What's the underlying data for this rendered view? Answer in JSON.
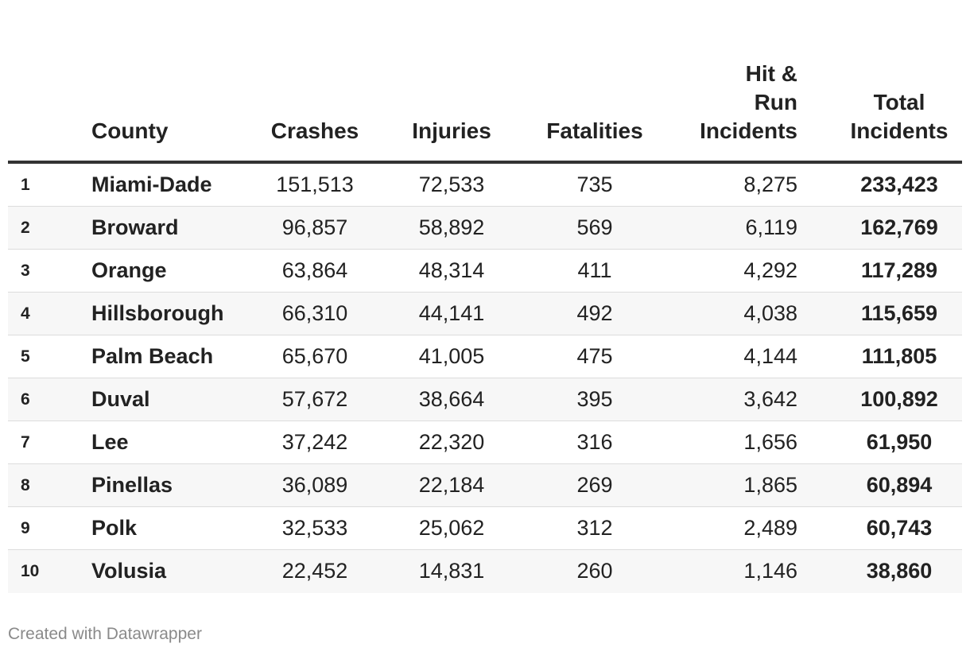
{
  "chart_data": {
    "type": "table",
    "columns": [
      "",
      "County",
      "Crashes",
      "Injuries",
      "Fatalities",
      "Hit & Run Incidents",
      "Total Incidents"
    ],
    "header_lines": {
      "hit_and_run": [
        "Hit &",
        "Run",
        "Incidents"
      ],
      "total": [
        "Total",
        "Incidents"
      ]
    },
    "rows": [
      {
        "rank": "1",
        "county": "Miami-Dade",
        "crashes": "151,513",
        "injuries": "72,533",
        "fatalities": "735",
        "hit_and_run": "8,275",
        "total": "233,423"
      },
      {
        "rank": "2",
        "county": "Broward",
        "crashes": "96,857",
        "injuries": "58,892",
        "fatalities": "569",
        "hit_and_run": "6,119",
        "total": "162,769"
      },
      {
        "rank": "3",
        "county": "Orange",
        "crashes": "63,864",
        "injuries": "48,314",
        "fatalities": "411",
        "hit_and_run": "4,292",
        "total": "117,289"
      },
      {
        "rank": "4",
        "county": "Hillsborough",
        "crashes": "66,310",
        "injuries": "44,141",
        "fatalities": "492",
        "hit_and_run": "4,038",
        "total": "115,659"
      },
      {
        "rank": "5",
        "county": "Palm Beach",
        "crashes": "65,670",
        "injuries": "41,005",
        "fatalities": "475",
        "hit_and_run": "4,144",
        "total": "111,805"
      },
      {
        "rank": "6",
        "county": "Duval",
        "crashes": "57,672",
        "injuries": "38,664",
        "fatalities": "395",
        "hit_and_run": "3,642",
        "total": "100,892"
      },
      {
        "rank": "7",
        "county": "Lee",
        "crashes": "37,242",
        "injuries": "22,320",
        "fatalities": "316",
        "hit_and_run": "1,656",
        "total": "61,950"
      },
      {
        "rank": "8",
        "county": "Pinellas",
        "crashes": "36,089",
        "injuries": "22,184",
        "fatalities": "269",
        "hit_and_run": "1,865",
        "total": "60,894"
      },
      {
        "rank": "9",
        "county": "Polk",
        "crashes": "32,533",
        "injuries": "25,062",
        "fatalities": "312",
        "hit_and_run": "2,489",
        "total": "60,743"
      },
      {
        "rank": "10",
        "county": "Volusia",
        "crashes": "22,452",
        "injuries": "14,831",
        "fatalities": "260",
        "hit_and_run": "1,146",
        "total": "38,860"
      }
    ]
  },
  "footer": {
    "credit": "Created with Datawrapper"
  },
  "colors": {
    "text": "#222222",
    "header_rule": "#333333",
    "stripe": "#f7f7f7",
    "row_rule": "#dcdcdc",
    "footer_text": "#8a8a8a"
  }
}
